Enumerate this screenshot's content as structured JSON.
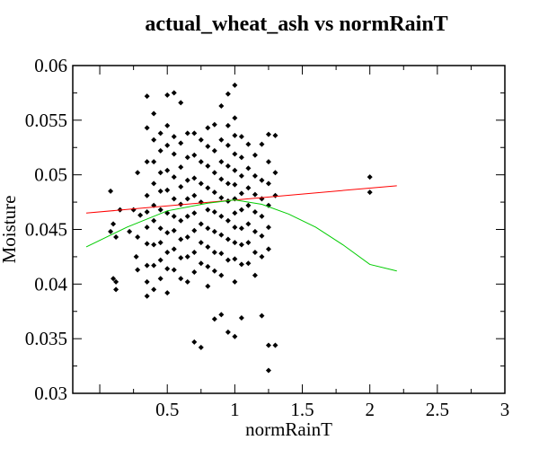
{
  "chart_data": {
    "type": "scatter",
    "title": "actual_wheat_ash vs normRainT",
    "xlabel": "normRainT",
    "ylabel": "Moisture",
    "xlim": [
      -0.2,
      3
    ],
    "ylim": [
      0.03,
      0.06
    ],
    "xticks": [
      "0.5",
      "1",
      "1.5",
      "2",
      "2.5",
      "3"
    ],
    "yticks": [
      "0.03",
      "0.035",
      "0.04",
      "0.045",
      "0.05",
      "0.055",
      "0.06"
    ],
    "grid": false,
    "point_color": "#000000",
    "points": [
      [
        0.08,
        0.0485
      ],
      [
        0.1,
        0.0405
      ],
      [
        0.1,
        0.0455
      ],
      [
        0.12,
        0.0395
      ],
      [
        0.12,
        0.0443
      ],
      [
        0.15,
        0.0468
      ],
      [
        0.12,
        0.0402
      ],
      [
        0.08,
        0.0448
      ],
      [
        0.22,
        0.0448
      ],
      [
        0.25,
        0.0468
      ],
      [
        0.28,
        0.0443
      ],
      [
        0.28,
        0.0413
      ],
      [
        0.28,
        0.0502
      ],
      [
        0.3,
        0.0463
      ],
      [
        0.27,
        0.0425
      ],
      [
        0.35,
        0.0572
      ],
      [
        0.35,
        0.0543
      ],
      [
        0.35,
        0.0512
      ],
      [
        0.35,
        0.0481
      ],
      [
        0.35,
        0.0466
      ],
      [
        0.35,
        0.0452
      ],
      [
        0.35,
        0.0437
      ],
      [
        0.35,
        0.0417
      ],
      [
        0.35,
        0.0389
      ],
      [
        0.35,
        0.0402
      ],
      [
        0.4,
        0.0556
      ],
      [
        0.4,
        0.0532
      ],
      [
        0.4,
        0.0512
      ],
      [
        0.4,
        0.0492
      ],
      [
        0.4,
        0.0472
      ],
      [
        0.4,
        0.0458
      ],
      [
        0.4,
        0.0436
      ],
      [
        0.4,
        0.0417
      ],
      [
        0.4,
        0.0395
      ],
      [
        0.45,
        0.0538
      ],
      [
        0.45,
        0.0522
      ],
      [
        0.45,
        0.0502
      ],
      [
        0.45,
        0.0485
      ],
      [
        0.45,
        0.0468
      ],
      [
        0.45,
        0.0451
      ],
      [
        0.45,
        0.0438
      ],
      [
        0.45,
        0.0422
      ],
      [
        0.45,
        0.0405
      ],
      [
        0.5,
        0.0573
      ],
      [
        0.5,
        0.0545
      ],
      [
        0.5,
        0.0527
      ],
      [
        0.5,
        0.0504
      ],
      [
        0.5,
        0.0486
      ],
      [
        0.5,
        0.0465
      ],
      [
        0.5,
        0.0447
      ],
      [
        0.5,
        0.0429
      ],
      [
        0.5,
        0.0414
      ],
      [
        0.5,
        0.0392
      ],
      [
        0.55,
        0.0575
      ],
      [
        0.55,
        0.0535
      ],
      [
        0.55,
        0.0519
      ],
      [
        0.55,
        0.0498
      ],
      [
        0.55,
        0.0478
      ],
      [
        0.55,
        0.0462
      ],
      [
        0.55,
        0.0449
      ],
      [
        0.55,
        0.0432
      ],
      [
        0.55,
        0.0413
      ],
      [
        0.6,
        0.0566
      ],
      [
        0.6,
        0.0529
      ],
      [
        0.6,
        0.0507
      ],
      [
        0.6,
        0.0489
      ],
      [
        0.6,
        0.0473
      ],
      [
        0.6,
        0.0458
      ],
      [
        0.6,
        0.0441
      ],
      [
        0.6,
        0.0424
      ],
      [
        0.6,
        0.0405
      ],
      [
        0.65,
        0.0538
      ],
      [
        0.65,
        0.0516
      ],
      [
        0.65,
        0.0495
      ],
      [
        0.65,
        0.0478
      ],
      [
        0.65,
        0.0462
      ],
      [
        0.65,
        0.0443
      ],
      [
        0.65,
        0.0425
      ],
      [
        0.65,
        0.0402
      ],
      [
        0.7,
        0.0538
      ],
      [
        0.7,
        0.0518
      ],
      [
        0.7,
        0.0497
      ],
      [
        0.7,
        0.0481
      ],
      [
        0.7,
        0.0465
      ],
      [
        0.7,
        0.0449
      ],
      [
        0.7,
        0.0429
      ],
      [
        0.7,
        0.0411
      ],
      [
        0.7,
        0.0347
      ],
      [
        0.75,
        0.0532
      ],
      [
        0.75,
        0.0512
      ],
      [
        0.75,
        0.0492
      ],
      [
        0.75,
        0.0475
      ],
      [
        0.75,
        0.0455
      ],
      [
        0.75,
        0.0438
      ],
      [
        0.75,
        0.0419
      ],
      [
        0.75,
        0.0342
      ],
      [
        0.8,
        0.0543
      ],
      [
        0.8,
        0.0526
      ],
      [
        0.8,
        0.0508
      ],
      [
        0.8,
        0.0488
      ],
      [
        0.8,
        0.0468
      ],
      [
        0.8,
        0.0451
      ],
      [
        0.8,
        0.0434
      ],
      [
        0.8,
        0.0416
      ],
      [
        0.8,
        0.0398
      ],
      [
        0.85,
        0.0546
      ],
      [
        0.85,
        0.0522
      ],
      [
        0.85,
        0.0502
      ],
      [
        0.85,
        0.0484
      ],
      [
        0.85,
        0.0466
      ],
      [
        0.85,
        0.0448
      ],
      [
        0.85,
        0.0429
      ],
      [
        0.85,
        0.0412
      ],
      [
        0.85,
        0.0368
      ],
      [
        0.9,
        0.0563
      ],
      [
        0.9,
        0.0532
      ],
      [
        0.9,
        0.0512
      ],
      [
        0.9,
        0.0496
      ],
      [
        0.9,
        0.0479
      ],
      [
        0.9,
        0.0462
      ],
      [
        0.9,
        0.0445
      ],
      [
        0.9,
        0.0428
      ],
      [
        0.9,
        0.0408
      ],
      [
        0.9,
        0.0372
      ],
      [
        0.95,
        0.0574
      ],
      [
        0.95,
        0.0545
      ],
      [
        0.95,
        0.0527
      ],
      [
        0.95,
        0.0508
      ],
      [
        0.95,
        0.0492
      ],
      [
        0.95,
        0.0476
      ],
      [
        0.95,
        0.0458
      ],
      [
        0.95,
        0.0441
      ],
      [
        0.95,
        0.0422
      ],
      [
        0.95,
        0.0356
      ],
      [
        1,
        0.0582
      ],
      [
        1,
        0.0552
      ],
      [
        1,
        0.0536
      ],
      [
        1,
        0.0519
      ],
      [
        1,
        0.0504
      ],
      [
        1,
        0.0491
      ],
      [
        1,
        0.0478
      ],
      [
        1,
        0.0465
      ],
      [
        1,
        0.0452
      ],
      [
        1,
        0.0438
      ],
      [
        1,
        0.0423
      ],
      [
        1,
        0.0402
      ],
      [
        1,
        0.0352
      ],
      [
        1.05,
        0.0535
      ],
      [
        1.05,
        0.0516
      ],
      [
        1.05,
        0.0499
      ],
      [
        1.05,
        0.0483
      ],
      [
        1.05,
        0.0468
      ],
      [
        1.05,
        0.0451
      ],
      [
        1.05,
        0.0436
      ],
      [
        1.05,
        0.0418
      ],
      [
        1.05,
        0.0369
      ],
      [
        1.1,
        0.0528
      ],
      [
        1.1,
        0.0506
      ],
      [
        1.1,
        0.0488
      ],
      [
        1.1,
        0.0472
      ],
      [
        1.1,
        0.0455
      ],
      [
        1.1,
        0.0438
      ],
      [
        1.1,
        0.0419
      ],
      [
        1.15,
        0.0518
      ],
      [
        1.15,
        0.0499
      ],
      [
        1.15,
        0.0482
      ],
      [
        1.15,
        0.0466
      ],
      [
        1.15,
        0.0448
      ],
      [
        1.15,
        0.0429
      ],
      [
        1.15,
        0.0408
      ],
      [
        1.2,
        0.0528
      ],
      [
        1.2,
        0.0495
      ],
      [
        1.2,
        0.0478
      ],
      [
        1.2,
        0.0462
      ],
      [
        1.2,
        0.0444
      ],
      [
        1.2,
        0.0425
      ],
      [
        1.2,
        0.0371
      ],
      [
        1.25,
        0.0537
      ],
      [
        1.25,
        0.0512
      ],
      [
        1.25,
        0.0492
      ],
      [
        1.25,
        0.0472
      ],
      [
        1.25,
        0.0452
      ],
      [
        1.25,
        0.0432
      ],
      [
        1.25,
        0.0344
      ],
      [
        1.25,
        0.0321
      ],
      [
        1.3,
        0.0536
      ],
      [
        1.3,
        0.0502
      ],
      [
        1.3,
        0.0481
      ],
      [
        1.3,
        0.0344
      ],
      [
        2,
        0.0498
      ],
      [
        2,
        0.0484
      ]
    ],
    "lines": [
      {
        "color": "#ff0000",
        "x": [
          -0.1,
          2.2
        ],
        "y": [
          0.0465,
          0.049
        ]
      },
      {
        "color": "#00cc00",
        "x": [
          -0.1,
          0.2,
          0.5,
          0.8,
          1.0,
          1.2,
          1.4,
          1.6,
          1.8,
          2.0,
          2.2
        ],
        "y": [
          0.0434,
          0.0452,
          0.0467,
          0.0474,
          0.0477,
          0.0473,
          0.0464,
          0.0452,
          0.0436,
          0.0418,
          0.0412
        ]
      }
    ]
  }
}
